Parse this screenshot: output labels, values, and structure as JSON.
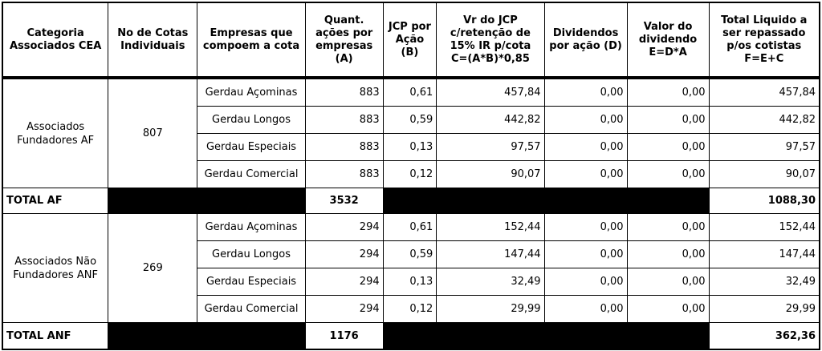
{
  "headers": [
    "Categoria Associados CEA",
    "No de Cotas Individuais",
    "Empresas que compoem a cota",
    "Quant. ações por empresas (A)",
    "JCP por Ação (B)",
    "Vr do JCP c/retenção de 15% IR p/cota C=(A*B)*0,85",
    "Dividendos por ação (D)",
    "Valor do dividendo E=D*A",
    "Total Liquido a ser repassado p/os cotistas F=E+C"
  ],
  "groups": [
    {
      "category": "Associados Fundadores AF",
      "cotas": "807",
      "rows": [
        {
          "empresa": "Gerdau Açominas",
          "quant": "883",
          "jcp": "0,61",
          "vr_jcp": "457,84",
          "div": "0,00",
          "valor_div": "0,00",
          "total": "457,84"
        },
        {
          "empresa": "Gerdau Longos",
          "quant": "883",
          "jcp": "0,59",
          "vr_jcp": "442,82",
          "div": "0,00",
          "valor_div": "0,00",
          "total": "442,82"
        },
        {
          "empresa": "Gerdau Especiais",
          "quant": "883",
          "jcp": "0,13",
          "vr_jcp": "97,57",
          "div": "0,00",
          "valor_div": "0,00",
          "total": "97,57"
        },
        {
          "empresa": "Gerdau Comercial",
          "quant": "883",
          "jcp": "0,12",
          "vr_jcp": "90,07",
          "div": "0,00",
          "valor_div": "0,00",
          "total": "90,07"
        }
      ],
      "total_label": "TOTAL AF",
      "total_quant": "3532",
      "total_value": "1088,30"
    },
    {
      "category": "Associados Não Fundadores ANF",
      "cotas": "269",
      "rows": [
        {
          "empresa": "Gerdau Açominas",
          "quant": "294",
          "jcp": "0,61",
          "vr_jcp": "152,44",
          "div": "0,00",
          "valor_div": "0,00",
          "total": "152,44"
        },
        {
          "empresa": "Gerdau Longos",
          "quant": "294",
          "jcp": "0,59",
          "vr_jcp": "147,44",
          "div": "0,00",
          "valor_div": "0,00",
          "total": "147,44"
        },
        {
          "empresa": "Gerdau Especiais",
          "quant": "294",
          "jcp": "0,13",
          "vr_jcp": "32,49",
          "div": "0,00",
          "valor_div": "0,00",
          "total": "32,49"
        },
        {
          "empresa": "Gerdau Comercial",
          "quant": "294",
          "jcp": "0,12",
          "vr_jcp": "29,99",
          "div": "0,00",
          "valor_div": "0,00",
          "total": "29,99"
        }
      ],
      "total_label": "TOTAL ANF",
      "total_quant": "1176",
      "total_value": "362,36"
    }
  ]
}
